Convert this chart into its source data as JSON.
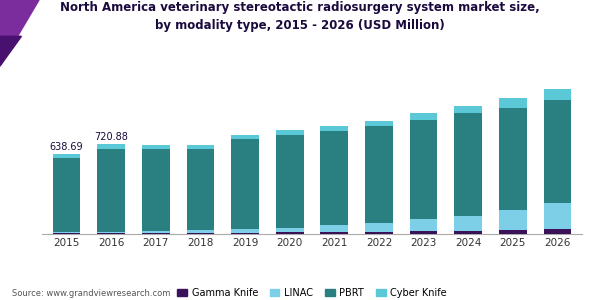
{
  "title": "North America veterinary stereotactic radiosurgery system market size,\nby modality type, 2015 - 2026 (USD Million)",
  "years": [
    2015,
    2016,
    2017,
    2018,
    2019,
    2020,
    2021,
    2022,
    2023,
    2024,
    2025,
    2026
  ],
  "gamma_knife": [
    8,
    8,
    9,
    10,
    11,
    13,
    15,
    18,
    22,
    28,
    35,
    42
  ],
  "linac": [
    8,
    10,
    14,
    20,
    28,
    38,
    55,
    70,
    95,
    120,
    160,
    210
  ],
  "pbrt": [
    595,
    668,
    658,
    655,
    720,
    745,
    755,
    780,
    800,
    820,
    820,
    820
  ],
  "cyber_knife": [
    28,
    35,
    30,
    30,
    32,
    35,
    38,
    42,
    50,
    60,
    75,
    95
  ],
  "annotations": {
    "2015": "638.69",
    "2016": "720.88"
  },
  "colors": {
    "gamma_knife": "#3b1259",
    "linac": "#7dcfe8",
    "pbrt": "#2a7f80",
    "cyber_knife": "#5bc8d8"
  },
  "legend_labels": [
    "Gamma Knife",
    "LINAC",
    "PBRT",
    "Cyber Knife"
  ],
  "source": "Source: www.grandviewresearch.com",
  "title_color": "#1a0a3d",
  "background_color": "#ffffff",
  "ylim": [
    0,
    1300
  ],
  "header_line_color": "#8B4FA6",
  "figsize": [
    6.0,
    3.0
  ],
  "dpi": 100
}
